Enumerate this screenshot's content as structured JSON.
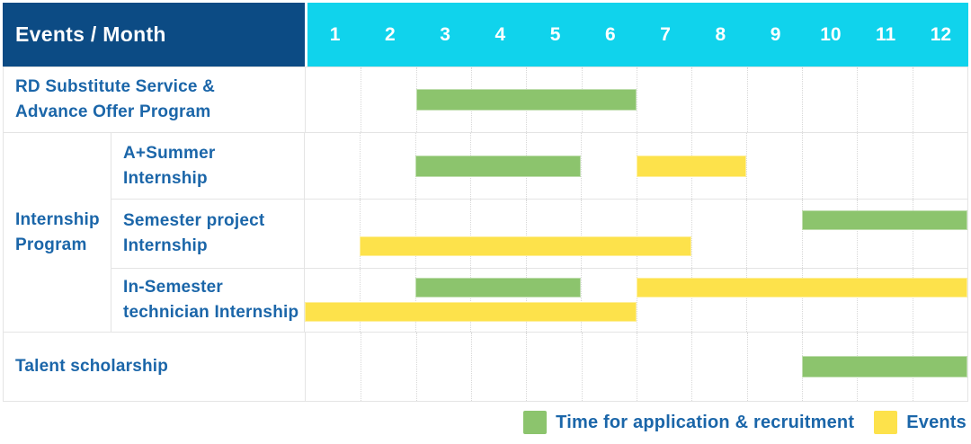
{
  "header": {
    "title": "Events / Month",
    "months": [
      "1",
      "2",
      "3",
      "4",
      "5",
      "6",
      "7",
      "8",
      "9",
      "10",
      "11",
      "12"
    ]
  },
  "colors": {
    "navy": "#0c4b84",
    "cyan": "#10d3ec",
    "labelBlue": "#1b66a9",
    "green": "#8cc46d",
    "yellow": "#fde24b",
    "grid": "#e4e4e4",
    "gridDotted": "#d8d8d8"
  },
  "group": {
    "label": "Internship Program",
    "label_lines": [
      "Internship",
      "Program"
    ]
  },
  "legend": {
    "items": [
      {
        "series": "application",
        "label": "Time for application & recruitment"
      },
      {
        "series": "event",
        "label": "Events"
      }
    ]
  },
  "chart_data": {
    "type": "gantt",
    "title": "Events / Month",
    "x_unit": "month",
    "x_range": [
      1,
      12
    ],
    "series_colors": {
      "application": "#8cc46d",
      "event": "#fde24b"
    },
    "series_names": {
      "application": "Time for application & recruitment",
      "event": "Events"
    },
    "rows": [
      {
        "label": "RD Substitute Service & Advance Offer Program",
        "label_lines": [
          "RD Substitute Service &",
          "Advance Offer Program"
        ],
        "group": "",
        "lines": 1,
        "bars": [
          {
            "series": "application",
            "start": 3,
            "end": 6,
            "line": 0
          }
        ]
      },
      {
        "label": "A+Summer Internship",
        "label_lines": [
          "A+Summer",
          "Internship"
        ],
        "group": "Internship Program",
        "lines": 1,
        "bars": [
          {
            "series": "application",
            "start": 3,
            "end": 5,
            "line": 0
          },
          {
            "series": "event",
            "start": 7,
            "end": 8,
            "line": 0
          }
        ]
      },
      {
        "label": "Semester project Internship",
        "label_lines": [
          "Semester project",
          "Internship"
        ],
        "group": "Internship Program",
        "lines": 2,
        "bars": [
          {
            "series": "application",
            "start": 10,
            "end": 12,
            "line": 0
          },
          {
            "series": "event",
            "start": 2,
            "end": 7,
            "line": 1
          }
        ]
      },
      {
        "label": "In-Semester technician Internship",
        "label_lines": [
          "In-Semester",
          "technician Internship"
        ],
        "group": "Internship Program",
        "lines": 2,
        "bars": [
          {
            "series": "application",
            "start": 3,
            "end": 5,
            "line": 0
          },
          {
            "series": "event",
            "start": 7,
            "end": 12,
            "line": 0
          },
          {
            "series": "event",
            "start": 1,
            "end": 6,
            "line": 1
          }
        ]
      },
      {
        "label": "Talent scholarship",
        "label_lines": [
          "Talent scholarship"
        ],
        "group": "",
        "lines": 1,
        "bars": [
          {
            "series": "application",
            "start": 10,
            "end": 12,
            "line": 0
          }
        ]
      }
    ]
  }
}
